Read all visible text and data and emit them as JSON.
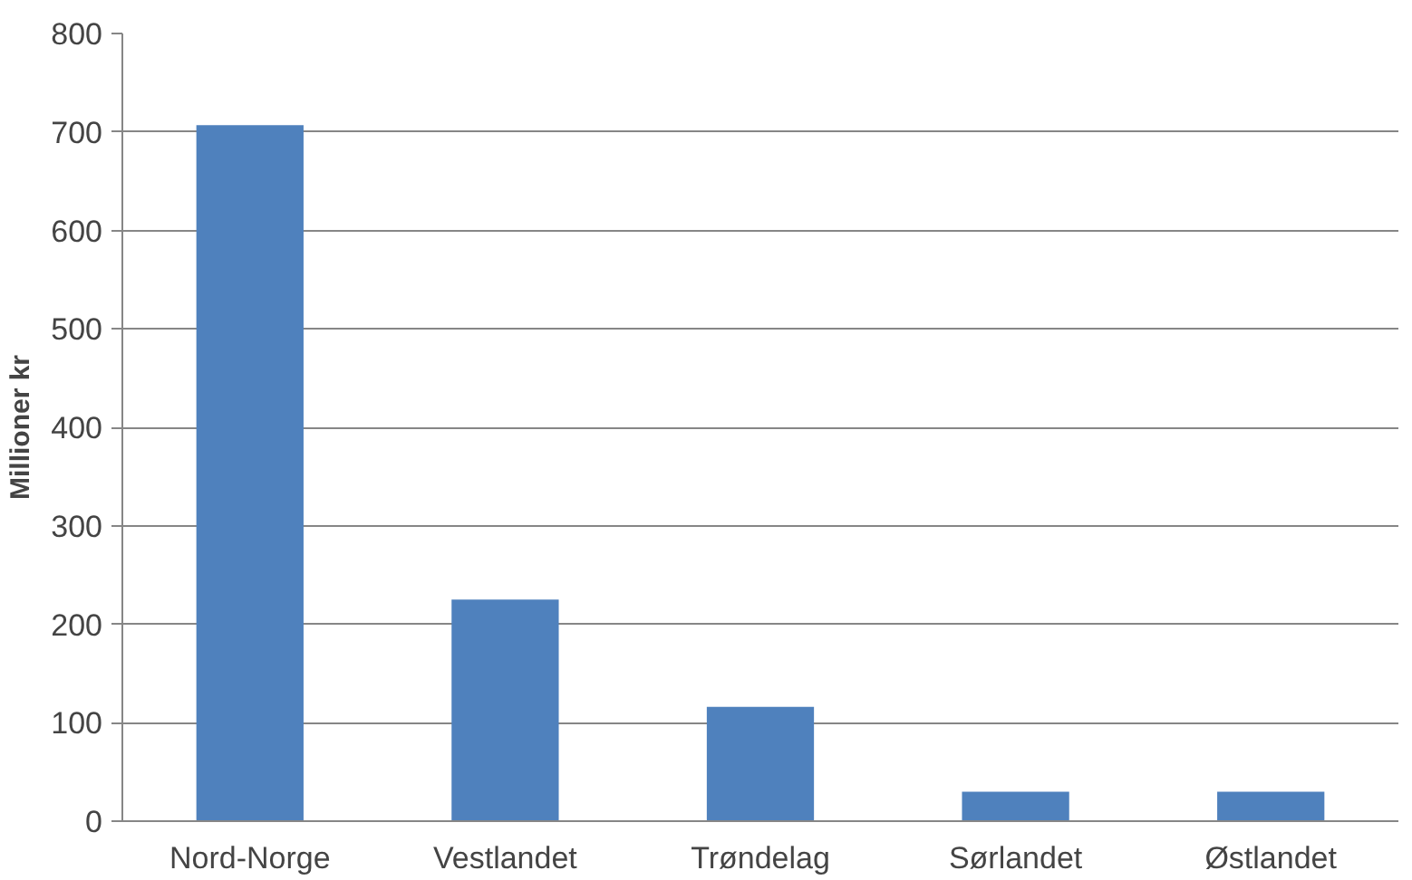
{
  "chart_data": {
    "type": "bar",
    "ylabel": "Millioner kr",
    "categories": [
      "Nord-Norge",
      "Vestlandet",
      "Trøndelag",
      "Sørlandet",
      "Østlandet"
    ],
    "values": [
      707,
      225,
      116,
      30,
      30
    ],
    "color": "#4f81bd",
    "ylim": [
      0,
      800
    ],
    "yticks": [
      0,
      100,
      200,
      300,
      400,
      500,
      600,
      700,
      800
    ],
    "grid": "y"
  }
}
